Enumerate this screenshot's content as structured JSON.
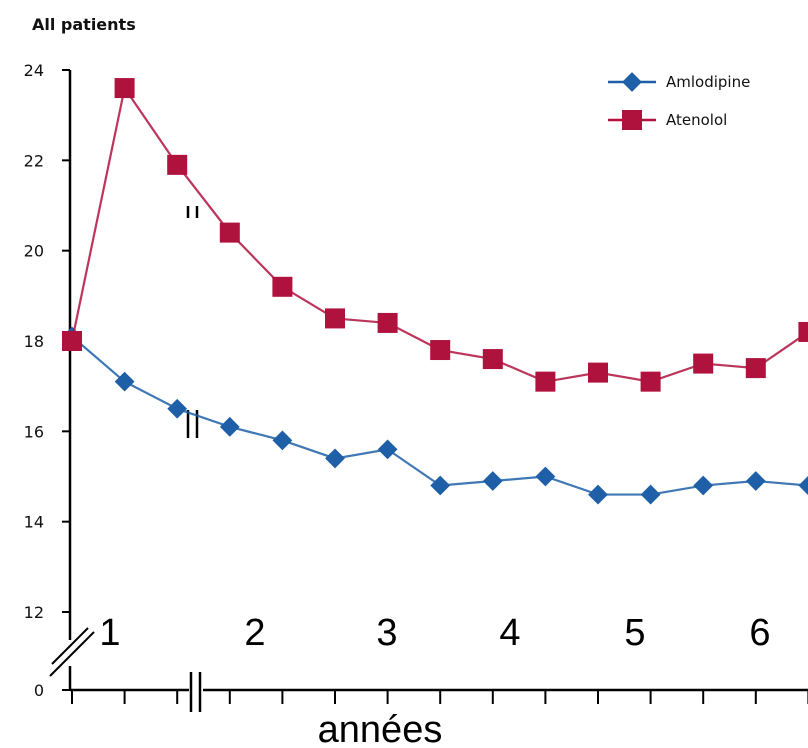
{
  "chart_data": {
    "type": "line",
    "title": "All patients",
    "xlabel": "années",
    "ylabel": "",
    "ylim": [
      12,
      24
    ],
    "y_ticks": [
      "24",
      "22",
      "20",
      "18",
      "16",
      "14",
      "12"
    ],
    "y_break_label": "0",
    "x_ticks": [
      "1",
      "2",
      "3",
      "4",
      "5",
      "6"
    ],
    "grid": false,
    "legend_position": "top-right",
    "series": [
      {
        "name": "Amlodipine",
        "color": "#1f5fa8",
        "marker": "diamond",
        "values": [
          18.1,
          17.1,
          16.5,
          16.1,
          15.8,
          15.4,
          15.6,
          14.8,
          14.9,
          15.0,
          14.6,
          14.6,
          14.8,
          14.9,
          14.8
        ]
      },
      {
        "name": "Atenolol",
        "color": "#b0123e",
        "marker": "square",
        "values": [
          18.0,
          23.6,
          21.9,
          20.4,
          19.2,
          18.5,
          18.4,
          17.8,
          17.6,
          17.1,
          17.3,
          17.1,
          17.5,
          17.4,
          18.2
        ]
      }
    ]
  }
}
